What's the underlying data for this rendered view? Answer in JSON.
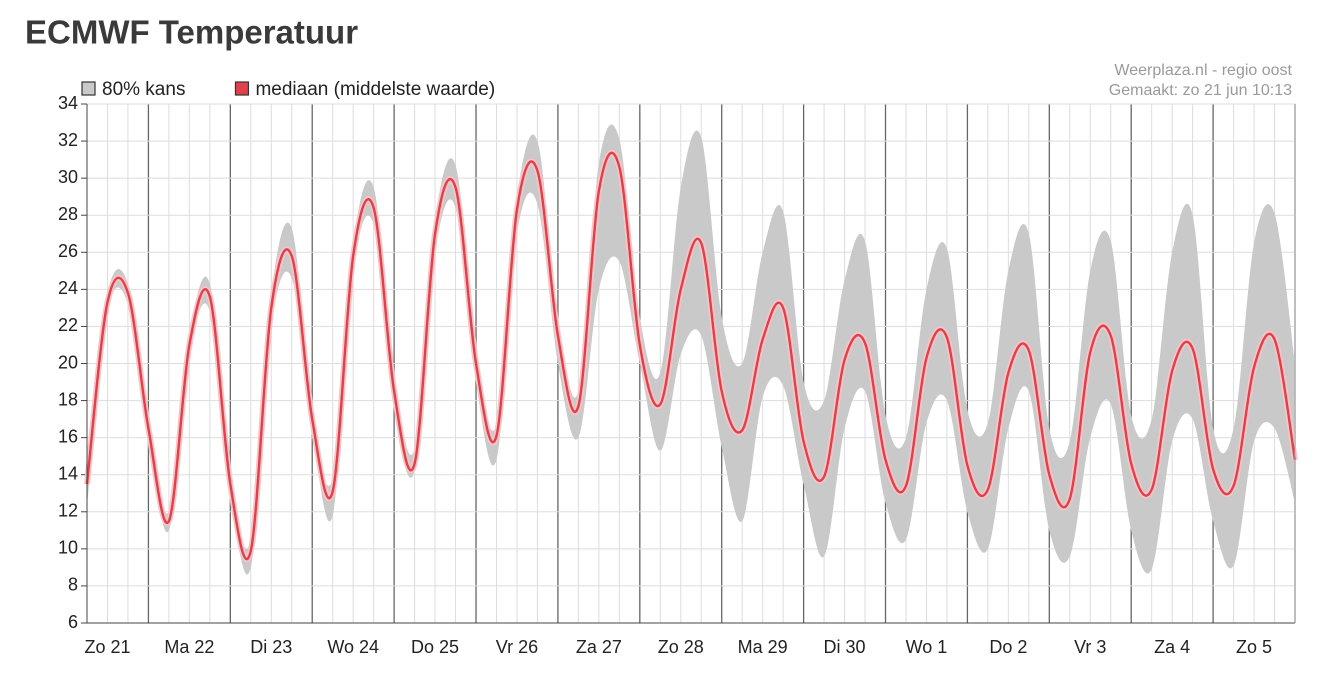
{
  "chart_data": {
    "type": "band-line",
    "title": "ECMWF Temperatuur",
    "annotations": [
      "Weerplaza.nl - regio oost",
      "Gemaakt: zo 21 jun 10:13"
    ],
    "categories": [
      null,
      "Zo 21",
      null,
      null,
      null,
      "Ma 22",
      null,
      null,
      null,
      "Di 23",
      null,
      null,
      null,
      "Wo 24",
      null,
      null,
      null,
      "Do 25",
      null,
      null,
      null,
      "Vr 26",
      null,
      null,
      null,
      "Za 27",
      null,
      null,
      null,
      "Zo 28",
      null,
      null,
      null,
      "Ma 29",
      null,
      null,
      null,
      "Di 30",
      null,
      null,
      null,
      "Wo 1",
      null,
      null,
      null,
      "Do 2",
      null,
      null,
      null,
      "Vr 3",
      null,
      null,
      null,
      "Za 4",
      null,
      null,
      null,
      "Zo 5",
      null,
      null
    ],
    "series": [
      {
        "name": "80% kans",
        "color": "#c9c9c9",
        "low": [
          12.3,
          22.8,
          23.2,
          16.0,
          11.0,
          20.5,
          22.8,
          13.0,
          9.0,
          22.0,
          24.6,
          16.3,
          11.8,
          25.0,
          27.5,
          17.8,
          14.2,
          26.0,
          28.4,
          19.0,
          14.8,
          27.0,
          28.6,
          20.0,
          16.0,
          24.0,
          25.5,
          20.0,
          15.3,
          20.5,
          21.5,
          15.5,
          11.5,
          18.2,
          18.8,
          13.5,
          9.6,
          16.5,
          18.5,
          12.5,
          10.5,
          16.8,
          18.0,
          12.0,
          10.0,
          16.5,
          18.5,
          11.0,
          9.6,
          16.0,
          17.8,
          11.0,
          8.9,
          15.8,
          17.0,
          11.5,
          9.1,
          15.8,
          16.5,
          12.5
        ],
        "high": [
          14.5,
          23.8,
          24.3,
          17.0,
          12.0,
          21.5,
          24.3,
          14.0,
          10.5,
          23.8,
          27.3,
          17.5,
          13.8,
          26.5,
          29.5,
          19.5,
          15.4,
          27.7,
          30.7,
          20.8,
          16.7,
          29.0,
          32.0,
          22.5,
          18.5,
          30.8,
          32.1,
          22.5,
          19.5,
          29.5,
          32.2,
          22.5,
          20.0,
          26.0,
          28.2,
          19.0,
          18.0,
          24.5,
          26.6,
          17.2,
          16.0,
          24.0,
          26.2,
          17.5,
          16.8,
          25.0,
          27.0,
          16.5,
          15.8,
          25.0,
          26.6,
          17.2,
          17.0,
          26.0,
          28.0,
          16.5,
          16.5,
          26.5,
          28.1,
          20.0
        ]
      },
      {
        "name": "mediaan (middelste waarde)",
        "color": "#e0404a",
        "values": [
          13.5,
          23.3,
          23.8,
          16.5,
          11.5,
          21.0,
          23.6,
          13.5,
          9.9,
          23.0,
          25.8,
          17.0,
          13.1,
          25.8,
          28.4,
          18.5,
          14.6,
          27.0,
          29.5,
          20.0,
          16.1,
          28.3,
          30.4,
          21.5,
          17.7,
          29.3,
          30.6,
          21.0,
          17.8,
          24.0,
          26.5,
          18.5,
          16.4,
          21.3,
          23.0,
          15.8,
          13.9,
          20.2,
          21.1,
          14.8,
          13.4,
          20.3,
          21.4,
          14.5,
          13.2,
          19.5,
          20.7,
          14.0,
          12.7,
          20.6,
          21.5,
          14.6,
          13.2,
          19.6,
          20.8,
          14.3,
          13.4,
          19.8,
          21.3,
          14.8
        ]
      }
    ],
    "ylim": [
      6,
      34
    ],
    "yticks": [
      6,
      8,
      10,
      12,
      14,
      16,
      18,
      20,
      22,
      24,
      26,
      28,
      30,
      32,
      34
    ],
    "grid": true
  }
}
